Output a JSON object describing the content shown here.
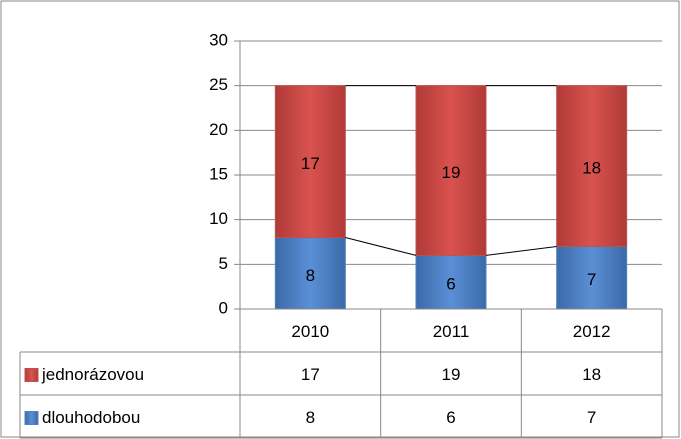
{
  "chart_data": {
    "type": "bar",
    "stacked": true,
    "data_table": true,
    "grid": true,
    "categories": [
      "2010",
      "2011",
      "2012"
    ],
    "series": [
      {
        "name": "dlouhodobou",
        "color": "#4f81bd",
        "values": [
          8,
          6,
          7
        ]
      },
      {
        "name": "jednorázovou",
        "color": "#c0504d",
        "values": [
          17,
          19,
          18
        ]
      }
    ],
    "ylim": [
      0,
      30
    ],
    "yticks": [
      0,
      5,
      10,
      15,
      20,
      25,
      30
    ]
  }
}
